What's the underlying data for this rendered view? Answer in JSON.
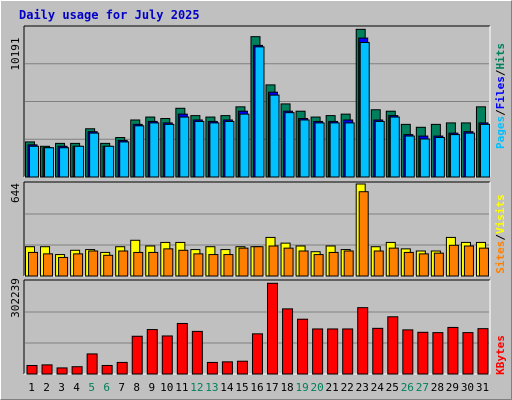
{
  "title": "Daily usage for July 2025",
  "colors": {
    "background": "#c0c0c0",
    "plot_bg": "#c0c0c0",
    "title": "#0000c8",
    "grid": "#808080",
    "hits": "#00805c",
    "files": "#0000ff",
    "pages": "#00c0ff",
    "visits": "#ffff00",
    "sites": "#ff8000",
    "kbytes": "#ff0000",
    "weekend": "#00805c",
    "weekday": "#000000"
  },
  "chart_data": [
    {
      "type": "bar",
      "panel": "hits-files-pages",
      "categories": [
        "1",
        "2",
        "3",
        "4",
        "5",
        "6",
        "7",
        "8",
        "9",
        "10",
        "11",
        "12",
        "13",
        "14",
        "15",
        "16",
        "17",
        "18",
        "19",
        "20",
        "21",
        "22",
        "23",
        "24",
        "25",
        "26",
        "27",
        "28",
        "29",
        "30",
        "31"
      ],
      "weekend_days": [
        "5",
        "6",
        "12",
        "13",
        "19",
        "20",
        "26",
        "27"
      ],
      "max_label": "10191",
      "ylim": [
        0,
        10191
      ],
      "series": [
        {
          "name": "Hits",
          "values": [
            2400,
            2100,
            2300,
            2300,
            3300,
            2300,
            2700,
            3900,
            4100,
            4000,
            4700,
            4200,
            4100,
            4200,
            4800,
            9600,
            6300,
            5000,
            4500,
            4100,
            4200,
            4300,
            10100,
            4600,
            4500,
            3600,
            3400,
            3600,
            3700,
            3700,
            4800
          ]
        },
        {
          "name": "Files",
          "values": [
            2200,
            2000,
            2100,
            2100,
            3100,
            2100,
            2500,
            3600,
            3800,
            3700,
            4300,
            3900,
            3800,
            3900,
            4500,
            9000,
            5800,
            4500,
            4000,
            3800,
            3800,
            3900,
            9500,
            3900,
            4200,
            2900,
            2800,
            2800,
            3000,
            3100,
            3700
          ]
        },
        {
          "name": "Pages",
          "values": [
            2100,
            2000,
            2000,
            2100,
            3000,
            2100,
            2400,
            3500,
            3700,
            3600,
            4100,
            3800,
            3700,
            3800,
            4300,
            8900,
            5600,
            4400,
            3900,
            3700,
            3700,
            3700,
            9200,
            3800,
            4100,
            2800,
            2600,
            2700,
            2900,
            3000,
            3600
          ]
        }
      ]
    },
    {
      "type": "bar",
      "panel": "visits-sites",
      "categories": [
        "1",
        "2",
        "3",
        "4",
        "5",
        "6",
        "7",
        "8",
        "9",
        "10",
        "11",
        "12",
        "13",
        "14",
        "15",
        "16",
        "17",
        "18",
        "19",
        "20",
        "21",
        "22",
        "23",
        "24",
        "25",
        "26",
        "27",
        "28",
        "29",
        "30",
        "31"
      ],
      "max_label": "644",
      "ylim": [
        0,
        644
      ],
      "series": [
        {
          "name": "Visits",
          "values": [
            205,
            205,
            150,
            180,
            185,
            165,
            205,
            250,
            210,
            235,
            235,
            185,
            205,
            185,
            205,
            205,
            270,
            230,
            210,
            170,
            210,
            185,
            644,
            205,
            235,
            190,
            175,
            175,
            270,
            235,
            235
          ]
        },
        {
          "name": "Sites",
          "values": [
            165,
            155,
            130,
            155,
            175,
            145,
            175,
            165,
            165,
            190,
            180,
            155,
            150,
            150,
            195,
            205,
            210,
            195,
            175,
            150,
            165,
            175,
            590,
            175,
            195,
            165,
            155,
            160,
            215,
            210,
            195
          ]
        }
      ]
    },
    {
      "type": "bar",
      "panel": "kbytes",
      "categories": [
        "1",
        "2",
        "3",
        "4",
        "5",
        "6",
        "7",
        "8",
        "9",
        "10",
        "11",
        "12",
        "13",
        "14",
        "15",
        "16",
        "17",
        "18",
        "19",
        "20",
        "21",
        "22",
        "23",
        "24",
        "25",
        "26",
        "27",
        "28",
        "29",
        "30",
        "31"
      ],
      "max_label": "302239",
      "ylim": [
        0,
        302239
      ],
      "series": [
        {
          "name": "KBytes",
          "values": [
            28000,
            30000,
            20000,
            24000,
            66000,
            28000,
            38000,
            124000,
            146000,
            125000,
            166000,
            140000,
            38000,
            40000,
            42000,
            132000,
            298000,
            214000,
            180000,
            148000,
            148000,
            148000,
            218000,
            150000,
            188000,
            145000,
            137000,
            136000,
            153000,
            136000,
            149000
          ]
        }
      ]
    }
  ],
  "axis_labels": {
    "top_pages": "Pages",
    "top_files": "Files",
    "top_hits": "Hits",
    "mid_sites": "Sites",
    "mid_visits": "Visits",
    "bot_kbytes": "KBytes",
    "sep": "/"
  }
}
